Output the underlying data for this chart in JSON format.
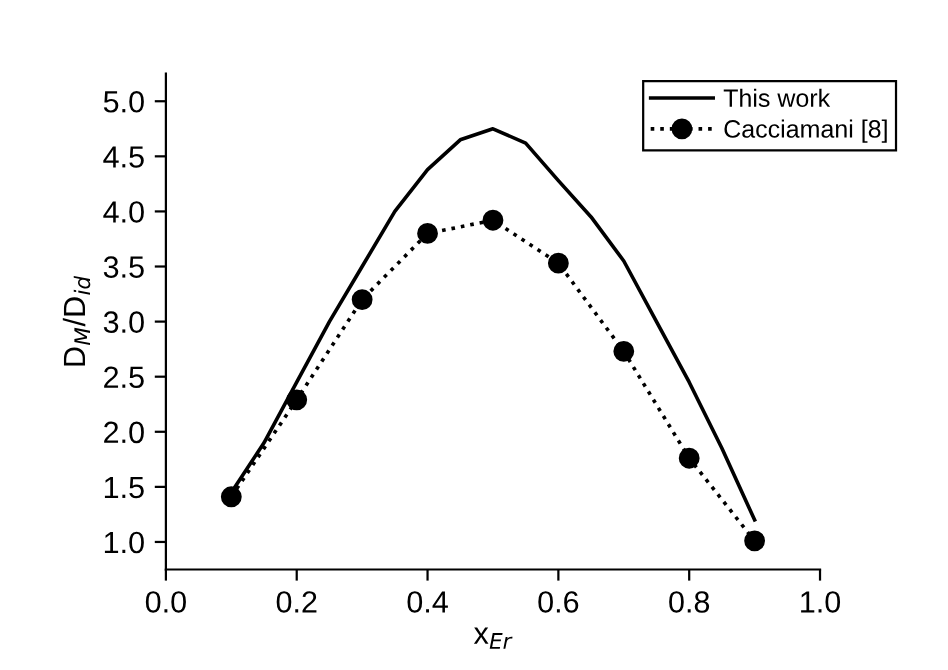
{
  "chart_data": {
    "type": "line",
    "xlabel": "x$_{Er}$",
    "ylabel": "D$_{M}$/D$_{id}$",
    "xlim": [
      0.0,
      1.0
    ],
    "xticks": [
      {
        "value": 0,
        "label": "0.0"
      },
      0.2,
      0.4,
      0.6,
      0.8,
      {
        "value": 1,
        "label": "1.0"
      }
    ],
    "ylim": [
      0.75,
      5.25
    ],
    "yticks": [
      {
        "value": 1,
        "label": "1.0"
      },
      1.5,
      {
        "value": 2,
        "label": "2.0"
      },
      2.5,
      {
        "value": 3,
        "label": "3.0"
      },
      3.5,
      {
        "value": 4,
        "label": "4.0"
      },
      4.5,
      {
        "value": 5,
        "label": "5.0"
      }
    ],
    "grid": false,
    "legend": "top right",
    "series": [
      {
        "name": "This work",
        "color": "#000000",
        "line_style": "solid",
        "marker": "none",
        "x": [
          0.1,
          0.15,
          0.2,
          0.25,
          0.3,
          0.35,
          0.4,
          0.45,
          0.5,
          0.55,
          0.6,
          0.65,
          0.7,
          0.75,
          0.8,
          0.85,
          0.9
        ],
        "values": [
          1.45,
          1.9,
          2.45,
          3.0,
          3.5,
          4.0,
          4.38,
          4.65,
          4.75,
          4.62,
          4.28,
          3.95,
          3.55,
          3.0,
          2.45,
          1.85,
          1.2
        ]
      },
      {
        "name": "Cacciamani [8]",
        "color": "#000000",
        "line_style": "dotted",
        "marker": "circle",
        "x": [
          0.1,
          0.2,
          0.3,
          0.4,
          0.5,
          0.6,
          0.7,
          0.8,
          0.9
        ],
        "values": [
          1.41,
          2.29,
          3.2,
          3.8,
          3.92,
          3.53,
          2.73,
          1.76,
          1.01
        ]
      }
    ]
  }
}
